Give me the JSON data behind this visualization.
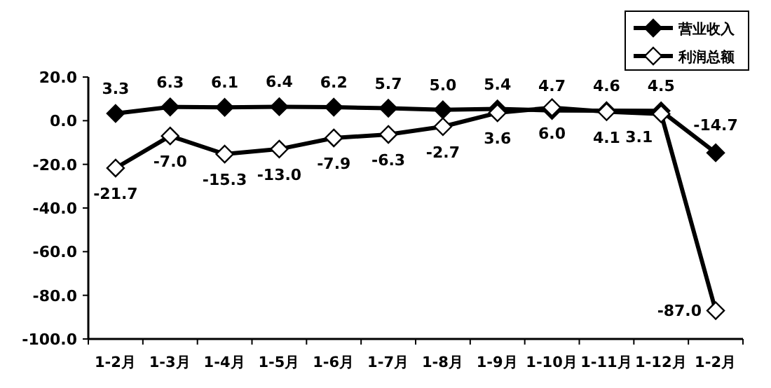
{
  "chart_data": {
    "type": "line",
    "categories": [
      "1-2月",
      "1-3月",
      "1-4月",
      "1-5月",
      "1-6月",
      "1-7月",
      "1-8月",
      "1-9月",
      "1-10月",
      "1-11月",
      "1-12月",
      "1-2月"
    ],
    "series": [
      {
        "name": "营业收入",
        "color": "#000000",
        "marker": "diamond",
        "values": [
          3.3,
          6.3,
          6.1,
          6.4,
          6.2,
          5.7,
          5.0,
          5.4,
          4.7,
          4.6,
          4.5,
          -14.7
        ],
        "value_labels": [
          "3.3",
          "6.3",
          "6.1",
          "6.4",
          "6.2",
          "5.7",
          "5.0",
          "5.4",
          "4.7",
          "4.6",
          "4.5",
          "-14.7"
        ]
      },
      {
        "name": "利润总额",
        "color": "#000000",
        "marker": "diamond",
        "values": [
          -21.7,
          -7.0,
          -15.3,
          -13.0,
          -7.9,
          -6.3,
          -2.7,
          3.6,
          6.0,
          4.1,
          3.1,
          -87.0
        ],
        "value_labels": [
          "-21.7",
          "-7.0",
          "-15.3",
          "-13.0",
          "-7.9",
          "-6.3",
          "-2.7",
          "3.6",
          "6.0",
          "4.1",
          "3.1",
          "-87.0"
        ]
      }
    ],
    "ylim": [
      -100,
      20
    ],
    "yticks": [
      {
        "value": -100,
        "label": "-100.0"
      },
      {
        "value": -80,
        "label": "-80.0"
      },
      {
        "value": -60,
        "label": "-60.0"
      },
      {
        "value": -40,
        "label": "-40.0"
      },
      {
        "value": -20,
        "label": "-20.0"
      },
      {
        "value": 0,
        "label": "0.0"
      },
      {
        "value": 20,
        "label": "20.0"
      }
    ],
    "grid": false,
    "legend": "top right",
    "line_style": "solid"
  }
}
